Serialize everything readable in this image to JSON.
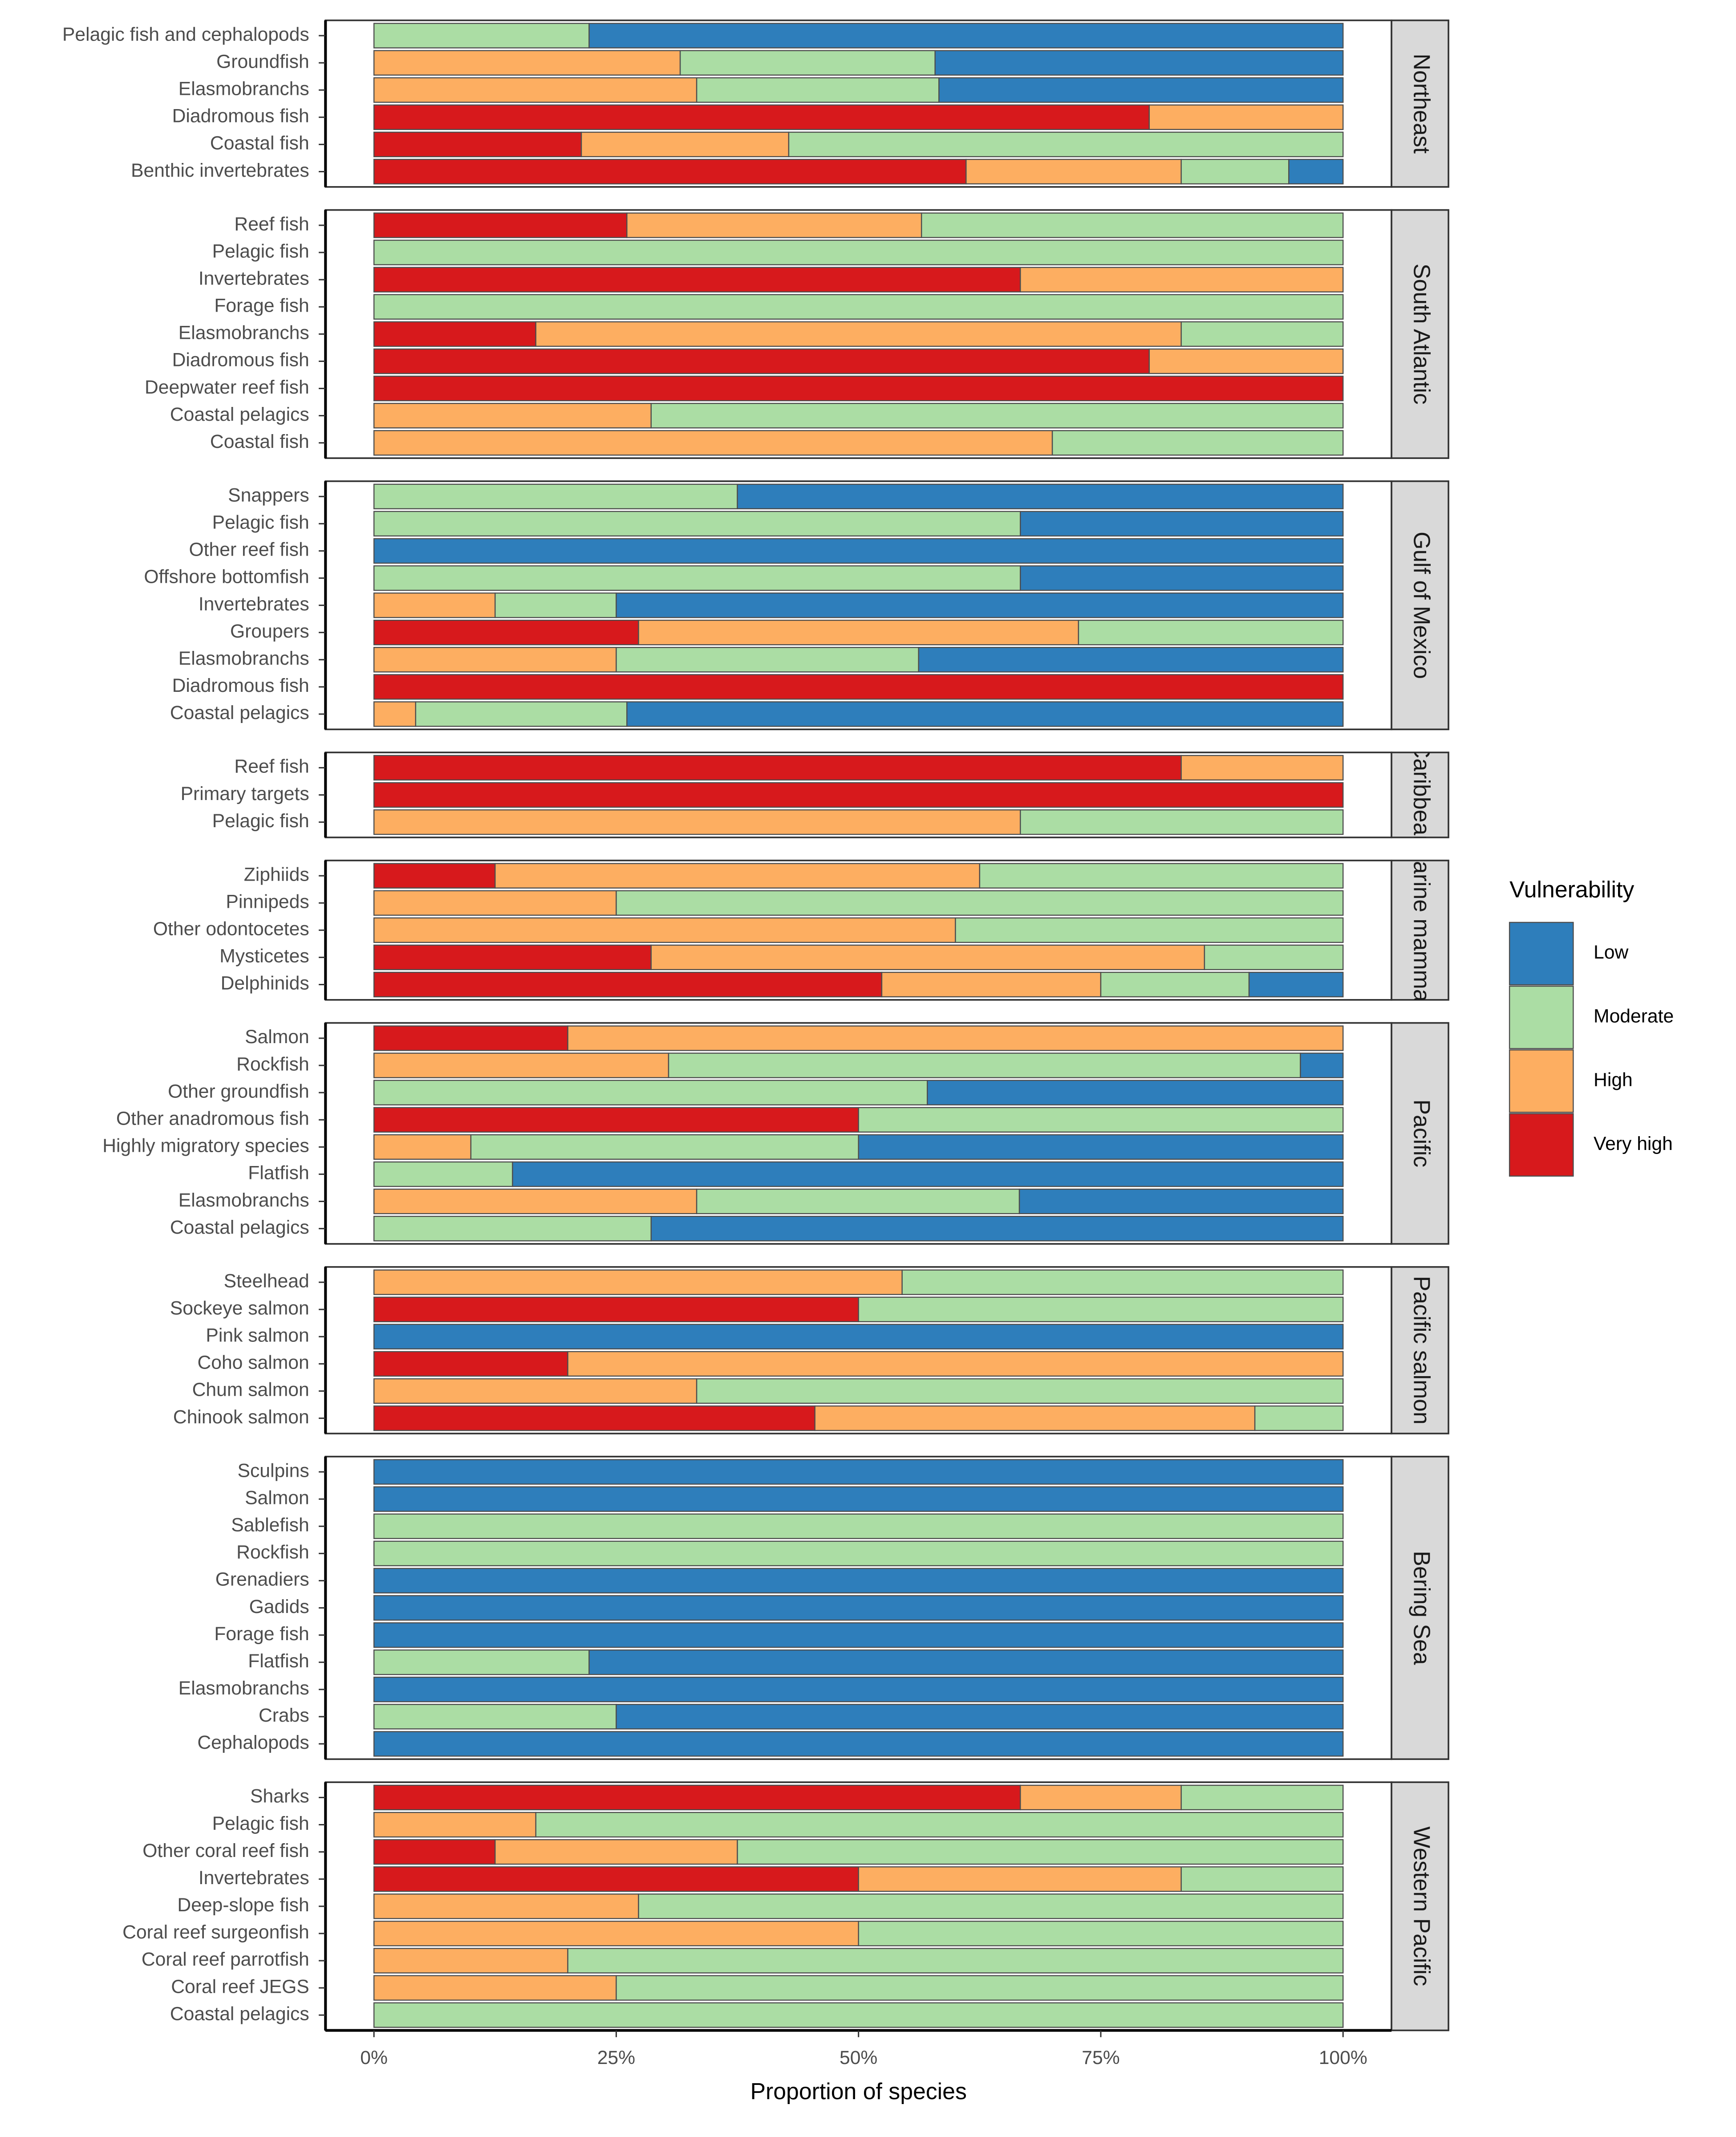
{
  "chart_data": {
    "type": "bar",
    "orientation": "horizontal",
    "stacked": true,
    "x_label": "Proportion of species",
    "xlim": [
      -5,
      105
    ],
    "xticks": [
      {
        "value": 0,
        "label": "0%"
      },
      {
        "value": 25,
        "label": "25%"
      },
      {
        "value": 50,
        "label": "50%"
      },
      {
        "value": 75,
        "label": "75%"
      },
      {
        "value": 100,
        "label": "100%"
      }
    ],
    "legend": {
      "title": "Vulnerability",
      "position": "right"
    },
    "series": [
      {
        "name": "Low",
        "color": "#2E7EBB"
      },
      {
        "name": "Moderate",
        "color": "#ABDDA4"
      },
      {
        "name": "High",
        "color": "#FDAE61"
      },
      {
        "name": "Very high",
        "color": "#D7191C"
      }
    ],
    "panels": [
      {
        "title": "Northeast",
        "categories": [
          "Pelagic fish and cephalopods",
          "Groundfish",
          "Elasmobranchs",
          "Diadromous fish",
          "Coastal fish",
          "Benthic invertebrates"
        ],
        "series": [
          {
            "values": [
              77.8,
              42.1,
              41.7,
              0,
              0,
              5.6
            ]
          },
          {
            "values": [
              22.2,
              26.3,
              25,
              0,
              57.2,
              11.1
            ]
          },
          {
            "values": [
              0,
              31.6,
              33.3,
              20,
              21.4,
              22.2
            ]
          },
          {
            "values": [
              0,
              0,
              0,
              80,
              21.4,
              61.1
            ]
          }
        ]
      },
      {
        "title": "South Atlantic",
        "categories": [
          "Reef fish",
          "Pelagic fish",
          "Invertebrates",
          "Forage fish",
          "Elasmobranchs",
          "Diadromous fish",
          "Deepwater reef fish",
          "Coastal pelagics",
          "Coastal fish"
        ],
        "series": [
          {
            "values": [
              0,
              0,
              0,
              0,
              0,
              0,
              0,
              0,
              0
            ]
          },
          {
            "values": [
              43.5,
              100,
              0,
              100,
              16.7,
              0,
              0,
              71.4,
              30
            ]
          },
          {
            "values": [
              30.4,
              0,
              33.3,
              0,
              66.6,
              20,
              0,
              28.6,
              70
            ]
          },
          {
            "values": [
              26.1,
              0,
              66.7,
              0,
              16.7,
              80,
              100,
              0,
              0
            ]
          }
        ]
      },
      {
        "title": "Gulf of Mexico",
        "categories": [
          "Snappers",
          "Pelagic fish",
          "Other reef fish",
          "Offshore bottomfish",
          "Invertebrates",
          "Groupers",
          "Elasmobranchs",
          "Diadromous fish",
          "Coastal pelagics"
        ],
        "series": [
          {
            "values": [
              62.5,
              33.3,
              100,
              33.3,
              75,
              0,
              43.8,
              0,
              73.9
            ]
          },
          {
            "values": [
              37.5,
              66.7,
              0,
              66.7,
              12.5,
              27.3,
              31.2,
              0,
              21.8
            ]
          },
          {
            "values": [
              0,
              0,
              0,
              0,
              12.5,
              45.4,
              25,
              0,
              4.3
            ]
          },
          {
            "values": [
              0,
              0,
              0,
              0,
              0,
              27.3,
              0,
              100,
              0
            ]
          }
        ]
      },
      {
        "title": "Caribbean",
        "categories": [
          "Reef fish",
          "Primary targets",
          "Pelagic fish"
        ],
        "series": [
          {
            "values": [
              0,
              0,
              0
            ]
          },
          {
            "values": [
              0,
              0,
              33.3
            ]
          },
          {
            "values": [
              16.7,
              0,
              66.7
            ]
          },
          {
            "values": [
              83.3,
              100,
              0
            ]
          }
        ]
      },
      {
        "title": "Marine mammals",
        "categories": [
          "Ziphiids",
          "Pinnipeds",
          "Other odontocetes",
          "Mysticetes",
          "Delphinids"
        ],
        "series": [
          {
            "values": [
              0,
              0,
              0,
              0,
              9.7
            ]
          },
          {
            "values": [
              37.5,
              75,
              40,
              14.3,
              15.3
            ]
          },
          {
            "values": [
              50,
              25,
              60,
              57.1,
              22.6
            ]
          },
          {
            "values": [
              12.5,
              0,
              0,
              28.6,
              52.4
            ]
          }
        ]
      },
      {
        "title": "Pacific",
        "categories": [
          "Salmon",
          "Rockfish",
          "Other groundfish",
          "Other anadromous fish",
          "Highly migratory species",
          "Flatfish",
          "Elasmobranchs",
          "Coastal pelagics"
        ],
        "series": [
          {
            "values": [
              0,
              4.4,
              42.9,
              0,
              50,
              85.7,
              33.4,
              71.4
            ]
          },
          {
            "values": [
              0,
              65.2,
              57.1,
              50,
              40,
              14.3,
              33.3,
              28.6
            ]
          },
          {
            "values": [
              80,
              30.4,
              0,
              0,
              10,
              0,
              33.3,
              0
            ]
          },
          {
            "values": [
              20,
              0,
              0,
              50,
              0,
              0,
              0,
              0
            ]
          }
        ]
      },
      {
        "title": "Pacific salmon",
        "categories": [
          "Steelhead",
          "Sockeye salmon",
          "Pink salmon",
          "Coho salmon",
          "Chum salmon",
          "Chinook salmon"
        ],
        "series": [
          {
            "values": [
              0,
              0,
              100,
              0,
              0,
              0
            ]
          },
          {
            "values": [
              45.5,
              50,
              0,
              0,
              66.7,
              9.1
            ]
          },
          {
            "values": [
              54.5,
              0,
              0,
              80,
              33.3,
              45.4
            ]
          },
          {
            "values": [
              0,
              50,
              0,
              20,
              0,
              45.5
            ]
          }
        ]
      },
      {
        "title": "Bering Sea",
        "categories": [
          "Sculpins",
          "Salmon",
          "Sablefish",
          "Rockfish",
          "Grenadiers",
          "Gadids",
          "Forage fish",
          "Flatfish",
          "Elasmobranchs",
          "Crabs",
          "Cephalopods"
        ],
        "series": [
          {
            "values": [
              100,
              100,
              0,
              0,
              100,
              100,
              100,
              77.8,
              100,
              75,
              100
            ]
          },
          {
            "values": [
              0,
              0,
              100,
              100,
              0,
              0,
              0,
              22.2,
              0,
              25,
              0
            ]
          },
          {
            "values": [
              0,
              0,
              0,
              0,
              0,
              0,
              0,
              0,
              0,
              0,
              0
            ]
          },
          {
            "values": [
              0,
              0,
              0,
              0,
              0,
              0,
              0,
              0,
              0,
              0,
              0
            ]
          }
        ]
      },
      {
        "title": "Western Pacific",
        "categories": [
          "Sharks",
          "Pelagic fish",
          "Other coral reef fish",
          "Invertebrates",
          "Deep-slope fish",
          "Coral reef surgeonfish",
          "Coral reef parrotfish",
          "Coral reef JEGS",
          "Coastal pelagics"
        ],
        "series": [
          {
            "values": [
              0,
              0,
              0,
              0,
              0,
              0,
              0,
              0,
              0
            ]
          },
          {
            "values": [
              16.7,
              83.3,
              62.5,
              16.7,
              72.7,
              50,
              80,
              75,
              100
            ]
          },
          {
            "values": [
              16.6,
              16.7,
              25,
              33.3,
              27.3,
              50,
              20,
              25,
              0
            ]
          },
          {
            "values": [
              66.7,
              0,
              12.5,
              50,
              0,
              0,
              0,
              0,
              0
            ]
          }
        ]
      }
    ]
  }
}
